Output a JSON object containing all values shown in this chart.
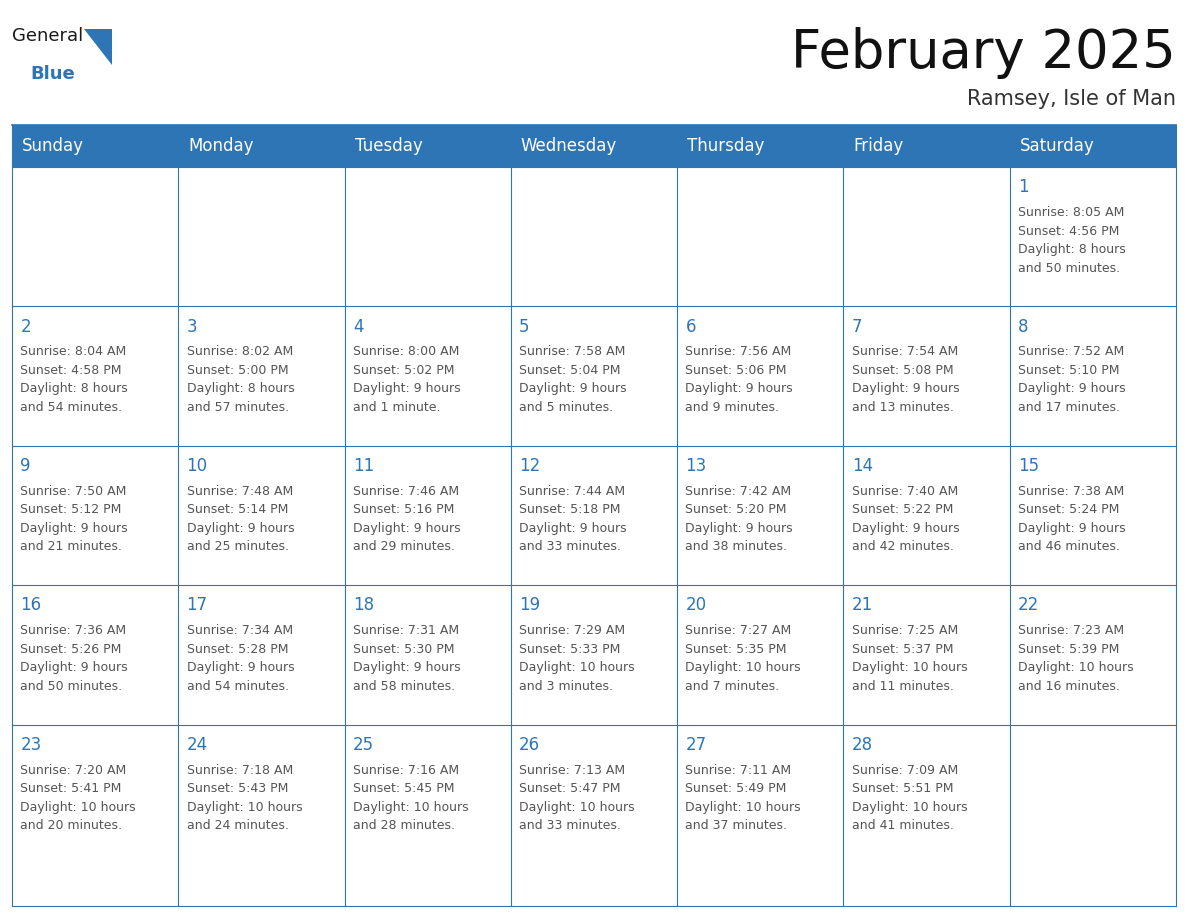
{
  "title": "February 2025",
  "subtitle": "Ramsey, Isle of Man",
  "header_bg": "#2E75B6",
  "header_text_color": "#FFFFFF",
  "cell_border_color": "#2E75B6",
  "day_number_color": "#2E75B6",
  "info_text_color": "#555555",
  "background_color": "#FFFFFF",
  "days_of_week": [
    "Sunday",
    "Monday",
    "Tuesday",
    "Wednesday",
    "Thursday",
    "Friday",
    "Saturday"
  ],
  "weeks": [
    [
      {
        "day": null,
        "info": null
      },
      {
        "day": null,
        "info": null
      },
      {
        "day": null,
        "info": null
      },
      {
        "day": null,
        "info": null
      },
      {
        "day": null,
        "info": null
      },
      {
        "day": null,
        "info": null
      },
      {
        "day": "1",
        "info": "Sunrise: 8:05 AM\nSunset: 4:56 PM\nDaylight: 8 hours\nand 50 minutes."
      }
    ],
    [
      {
        "day": "2",
        "info": "Sunrise: 8:04 AM\nSunset: 4:58 PM\nDaylight: 8 hours\nand 54 minutes."
      },
      {
        "day": "3",
        "info": "Sunrise: 8:02 AM\nSunset: 5:00 PM\nDaylight: 8 hours\nand 57 minutes."
      },
      {
        "day": "4",
        "info": "Sunrise: 8:00 AM\nSunset: 5:02 PM\nDaylight: 9 hours\nand 1 minute."
      },
      {
        "day": "5",
        "info": "Sunrise: 7:58 AM\nSunset: 5:04 PM\nDaylight: 9 hours\nand 5 minutes."
      },
      {
        "day": "6",
        "info": "Sunrise: 7:56 AM\nSunset: 5:06 PM\nDaylight: 9 hours\nand 9 minutes."
      },
      {
        "day": "7",
        "info": "Sunrise: 7:54 AM\nSunset: 5:08 PM\nDaylight: 9 hours\nand 13 minutes."
      },
      {
        "day": "8",
        "info": "Sunrise: 7:52 AM\nSunset: 5:10 PM\nDaylight: 9 hours\nand 17 minutes."
      }
    ],
    [
      {
        "day": "9",
        "info": "Sunrise: 7:50 AM\nSunset: 5:12 PM\nDaylight: 9 hours\nand 21 minutes."
      },
      {
        "day": "10",
        "info": "Sunrise: 7:48 AM\nSunset: 5:14 PM\nDaylight: 9 hours\nand 25 minutes."
      },
      {
        "day": "11",
        "info": "Sunrise: 7:46 AM\nSunset: 5:16 PM\nDaylight: 9 hours\nand 29 minutes."
      },
      {
        "day": "12",
        "info": "Sunrise: 7:44 AM\nSunset: 5:18 PM\nDaylight: 9 hours\nand 33 minutes."
      },
      {
        "day": "13",
        "info": "Sunrise: 7:42 AM\nSunset: 5:20 PM\nDaylight: 9 hours\nand 38 minutes."
      },
      {
        "day": "14",
        "info": "Sunrise: 7:40 AM\nSunset: 5:22 PM\nDaylight: 9 hours\nand 42 minutes."
      },
      {
        "day": "15",
        "info": "Sunrise: 7:38 AM\nSunset: 5:24 PM\nDaylight: 9 hours\nand 46 minutes."
      }
    ],
    [
      {
        "day": "16",
        "info": "Sunrise: 7:36 AM\nSunset: 5:26 PM\nDaylight: 9 hours\nand 50 minutes."
      },
      {
        "day": "17",
        "info": "Sunrise: 7:34 AM\nSunset: 5:28 PM\nDaylight: 9 hours\nand 54 minutes."
      },
      {
        "day": "18",
        "info": "Sunrise: 7:31 AM\nSunset: 5:30 PM\nDaylight: 9 hours\nand 58 minutes."
      },
      {
        "day": "19",
        "info": "Sunrise: 7:29 AM\nSunset: 5:33 PM\nDaylight: 10 hours\nand 3 minutes."
      },
      {
        "day": "20",
        "info": "Sunrise: 7:27 AM\nSunset: 5:35 PM\nDaylight: 10 hours\nand 7 minutes."
      },
      {
        "day": "21",
        "info": "Sunrise: 7:25 AM\nSunset: 5:37 PM\nDaylight: 10 hours\nand 11 minutes."
      },
      {
        "day": "22",
        "info": "Sunrise: 7:23 AM\nSunset: 5:39 PM\nDaylight: 10 hours\nand 16 minutes."
      }
    ],
    [
      {
        "day": "23",
        "info": "Sunrise: 7:20 AM\nSunset: 5:41 PM\nDaylight: 10 hours\nand 20 minutes."
      },
      {
        "day": "24",
        "info": "Sunrise: 7:18 AM\nSunset: 5:43 PM\nDaylight: 10 hours\nand 24 minutes."
      },
      {
        "day": "25",
        "info": "Sunrise: 7:16 AM\nSunset: 5:45 PM\nDaylight: 10 hours\nand 28 minutes."
      },
      {
        "day": "26",
        "info": "Sunrise: 7:13 AM\nSunset: 5:47 PM\nDaylight: 10 hours\nand 33 minutes."
      },
      {
        "day": "27",
        "info": "Sunrise: 7:11 AM\nSunset: 5:49 PM\nDaylight: 10 hours\nand 37 minutes."
      },
      {
        "day": "28",
        "info": "Sunrise: 7:09 AM\nSunset: 5:51 PM\nDaylight: 10 hours\nand 41 minutes."
      },
      {
        "day": null,
        "info": null
      }
    ]
  ],
  "logo_general_color": "#1a1a1a",
  "logo_blue_color": "#2E75B6",
  "title_fontsize": 38,
  "subtitle_fontsize": 15,
  "header_fontsize": 12,
  "day_number_fontsize": 12,
  "info_fontsize": 9.0,
  "fig_width": 11.88,
  "fig_height": 9.18,
  "dpi": 100
}
